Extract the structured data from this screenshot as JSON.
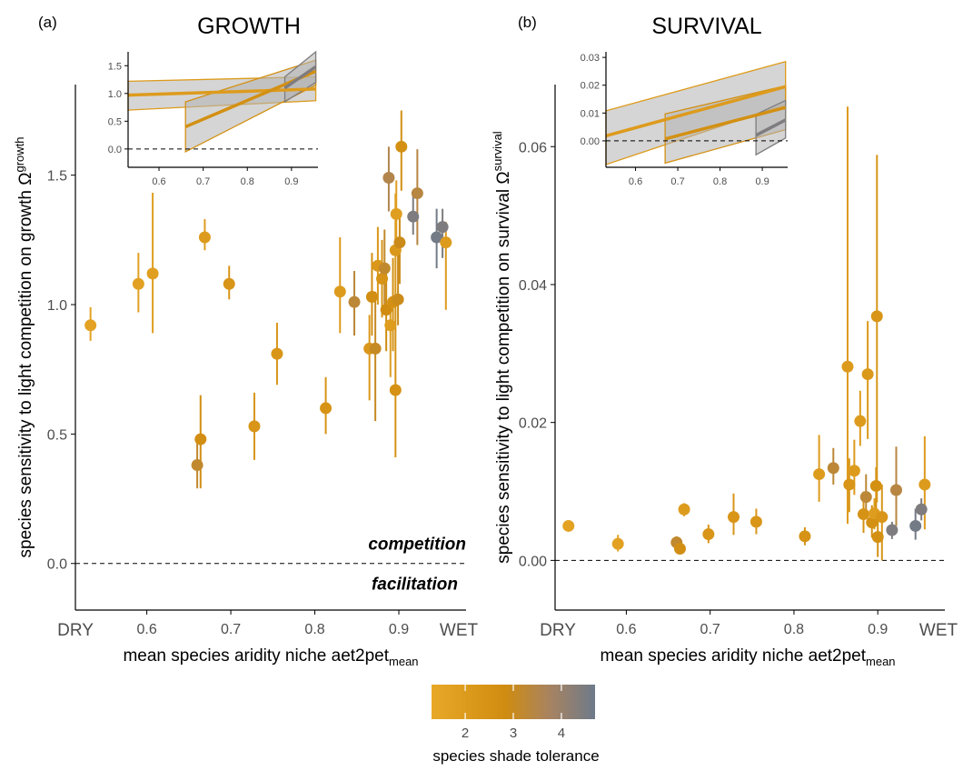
{
  "colors": {
    "shade_gradient": [
      "#e8a828",
      "#d08c10",
      "#a88360",
      "#6e7a8a"
    ],
    "ref_line": "#000000"
  },
  "legend": {
    "title": "species shade tolerance",
    "ticks": [
      "2",
      "3",
      "4"
    ],
    "tick_values": [
      2,
      3,
      4
    ],
    "range": [
      1.3,
      4.7
    ]
  },
  "chart_data": [
    {
      "type": "scatter",
      "panel_label": "(a)",
      "title": "GROWTH",
      "xlabel_main": "mean species aridity niche aet2pet",
      "xlabel_sub": "mean",
      "ylabel_main": "species sensitivity to light competition on growth  Ω",
      "ylabel_sup": "growth",
      "xlim": [
        0.515,
        0.98
      ],
      "ylim": [
        -0.18,
        1.85
      ],
      "x_ticks": [
        0.6,
        0.7,
        0.8,
        0.9
      ],
      "x_tick_labels": [
        "0.6",
        "0.7",
        "0.8",
        "0.9"
      ],
      "x_end_labels": [
        "DRY",
        "WET"
      ],
      "y_ticks": [
        0.0,
        0.5,
        1.0,
        1.5
      ],
      "y_tick_labels": [
        "0.0",
        "0.5",
        "1.0",
        "1.5"
      ],
      "ref_line_y": 0,
      "annotations": [
        "competition",
        "facilitation"
      ],
      "points": [
        {
          "x": 0.533,
          "y": 0.92,
          "lo": 0.86,
          "hi": 0.99,
          "shade": 1.6
        },
        {
          "x": 0.59,
          "y": 1.08,
          "lo": 0.97,
          "hi": 1.2,
          "shade": 1.7
        },
        {
          "x": 0.607,
          "y": 1.12,
          "lo": 0.89,
          "hi": 1.47,
          "shade": 1.8
        },
        {
          "x": 0.669,
          "y": 1.26,
          "lo": 1.21,
          "hi": 1.33,
          "shade": 2.0
        },
        {
          "x": 0.698,
          "y": 1.08,
          "lo": 1.02,
          "hi": 1.15,
          "shade": 2.3
        },
        {
          "x": 0.66,
          "y": 0.38,
          "lo": 0.29,
          "hi": 0.49,
          "shade": 3.1
        },
        {
          "x": 0.664,
          "y": 0.48,
          "lo": 0.29,
          "hi": 0.65,
          "shade": 2.7
        },
        {
          "x": 0.728,
          "y": 0.53,
          "lo": 0.4,
          "hi": 0.66,
          "shade": 2.3
        },
        {
          "x": 0.755,
          "y": 0.81,
          "lo": 0.69,
          "hi": 0.93,
          "shade": 2.3
        },
        {
          "x": 0.813,
          "y": 0.6,
          "lo": 0.5,
          "hi": 0.72,
          "shade": 2.4
        },
        {
          "x": 0.83,
          "y": 1.05,
          "lo": 0.89,
          "hi": 1.26,
          "shade": 2.0
        },
        {
          "x": 0.847,
          "y": 1.01,
          "lo": 0.88,
          "hi": 1.13,
          "shade": 3.2
        },
        {
          "x": 0.865,
          "y": 0.83,
          "lo": 0.63,
          "hi": 0.96,
          "shade": 2.2
        },
        {
          "x": 0.868,
          "y": 1.03,
          "lo": 0.88,
          "hi": 1.2,
          "shade": 2.7
        },
        {
          "x": 0.872,
          "y": 0.83,
          "lo": 0.55,
          "hi": 1.05,
          "shade": 3.0
        },
        {
          "x": 0.875,
          "y": 1.15,
          "lo": 1.0,
          "hi": 1.3,
          "shade": 2.2
        },
        {
          "x": 0.88,
          "y": 1.1,
          "lo": 0.95,
          "hi": 1.25,
          "shade": 2.4
        },
        {
          "x": 0.883,
          "y": 1.14,
          "lo": 0.97,
          "hi": 1.29,
          "shade": 3.1
        },
        {
          "x": 0.885,
          "y": 0.98,
          "lo": 0.82,
          "hi": 1.16,
          "shade": 2.8
        },
        {
          "x": 0.888,
          "y": 1.49,
          "lo": 1.36,
          "hi": 1.61,
          "shade": 3.4
        },
        {
          "x": 0.89,
          "y": 0.92,
          "lo": 0.72,
          "hi": 1.02,
          "shade": 1.9
        },
        {
          "x": 0.893,
          "y": 1.01,
          "lo": 0.82,
          "hi": 1.18,
          "shade": 2.6
        },
        {
          "x": 0.896,
          "y": 1.21,
          "lo": 0.99,
          "hi": 1.43,
          "shade": 2.1
        },
        {
          "x": 0.896,
          "y": 0.67,
          "lo": 0.41,
          "hi": 1.02,
          "shade": 2.5
        },
        {
          "x": 0.897,
          "y": 1.35,
          "lo": 1.25,
          "hi": 1.48,
          "shade": 1.8
        },
        {
          "x": 0.899,
          "y": 1.02,
          "lo": 0.92,
          "hi": 1.2,
          "shade": 2.9
        },
        {
          "x": 0.901,
          "y": 1.24,
          "lo": 1.08,
          "hi": 1.34,
          "shade": 2.9
        },
        {
          "x": 0.903,
          "y": 1.61,
          "lo": 1.44,
          "hi": 1.75,
          "shade": 2.6
        },
        {
          "x": 0.917,
          "y": 1.34,
          "lo": 1.27,
          "hi": 1.44,
          "shade": 4.4
        },
        {
          "x": 0.922,
          "y": 1.43,
          "lo": 1.23,
          "hi": 1.6,
          "shade": 3.3
        },
        {
          "x": 0.945,
          "y": 1.26,
          "lo": 1.14,
          "hi": 1.37,
          "shade": 4.6
        },
        {
          "x": 0.952,
          "y": 1.3,
          "lo": 1.18,
          "hi": 1.37,
          "shade": 4.4
        },
        {
          "x": 0.956,
          "y": 1.24,
          "lo": 0.98,
          "hi": 1.32,
          "shade": 2.0
        }
      ],
      "inset": {
        "xlim": [
          0.53,
          0.96
        ],
        "ylim": [
          -0.33,
          1.75
        ],
        "x_ticks": [
          0.6,
          0.7,
          0.8,
          0.9
        ],
        "x_tick_labels": [
          "0.6",
          "0.7",
          "0.8",
          "0.9"
        ],
        "y_ticks": [
          0.0,
          0.5,
          1.0,
          1.5
        ],
        "y_tick_labels": [
          "0.0",
          "0.5",
          "1.0",
          "1.5"
        ],
        "lines": [
          {
            "shade": 2.0,
            "x": [
              0.53,
              0.955
            ],
            "y": [
              0.97,
              1.08
            ],
            "lo": [
              0.7,
              0.87
            ],
            "hi": [
              1.22,
              1.3
            ]
          },
          {
            "shade": 2.6,
            "x": [
              0.66,
              0.955
            ],
            "y": [
              0.4,
              1.4
            ],
            "lo": [
              -0.05,
              1.15
            ],
            "hi": [
              0.85,
              1.6
            ]
          },
          {
            "shade": 4.4,
            "x": [
              0.885,
              0.955
            ],
            "y": [
              1.1,
              1.48
            ],
            "lo": [
              0.85,
              1.2
            ],
            "hi": [
              1.3,
              1.75
            ]
          }
        ]
      }
    },
    {
      "type": "scatter",
      "panel_label": "(b)",
      "title": "SURVIVAL",
      "xlabel_main": "mean species aridity niche aet2pet",
      "xlabel_sub": "mean",
      "ylabel_main": "species sensitivity to light competition on survival  Ω",
      "ylabel_sup": "survival",
      "xlim": [
        0.515,
        0.98
      ],
      "ylim": [
        -0.0072,
        0.069
      ],
      "x_ticks": [
        0.6,
        0.7,
        0.8,
        0.9
      ],
      "x_tick_labels": [
        "0.6",
        "0.7",
        "0.8",
        "0.9"
      ],
      "x_end_labels": [
        "DRY",
        "WET"
      ],
      "y_ticks": [
        0.0,
        0.02,
        0.04,
        0.06
      ],
      "y_tick_labels": [
        "0.00",
        "0.02",
        "0.04",
        "0.06"
      ],
      "ref_line_y": 0,
      "points": [
        {
          "x": 0.531,
          "y": 0.005,
          "lo": 0.0044,
          "hi": 0.0056,
          "shade": 1.6
        },
        {
          "x": 0.59,
          "y": 0.0024,
          "lo": 0.0013,
          "hi": 0.0037,
          "shade": 1.7
        },
        {
          "x": 0.66,
          "y": 0.0026,
          "lo": 0.0016,
          "hi": 0.0035,
          "shade": 3.1
        },
        {
          "x": 0.664,
          "y": 0.0017,
          "lo": 0.0009,
          "hi": 0.0026,
          "shade": 2.7
        },
        {
          "x": 0.669,
          "y": 0.0074,
          "lo": 0.0064,
          "hi": 0.0083,
          "shade": 2.0
        },
        {
          "x": 0.698,
          "y": 0.0038,
          "lo": 0.0025,
          "hi": 0.0052,
          "shade": 2.3
        },
        {
          "x": 0.728,
          "y": 0.0063,
          "lo": 0.0037,
          "hi": 0.0097,
          "shade": 2.3
        },
        {
          "x": 0.755,
          "y": 0.0056,
          "lo": 0.0038,
          "hi": 0.0075,
          "shade": 2.3
        },
        {
          "x": 0.813,
          "y": 0.0035,
          "lo": 0.0022,
          "hi": 0.0048,
          "shade": 2.4
        },
        {
          "x": 0.83,
          "y": 0.0125,
          "lo": 0.0085,
          "hi": 0.0182,
          "shade": 2.0
        },
        {
          "x": 0.847,
          "y": 0.0134,
          "lo": 0.011,
          "hi": 0.0163,
          "shade": 3.2
        },
        {
          "x": 0.864,
          "y": 0.0281,
          "lo": 0.0053,
          "hi": 0.0658,
          "shade": 2.0
        },
        {
          "x": 0.866,
          "y": 0.011,
          "lo": 0.007,
          "hi": 0.0148,
          "shade": 2.3
        },
        {
          "x": 0.872,
          "y": 0.013,
          "lo": 0.0095,
          "hi": 0.0175,
          "shade": 2.0
        },
        {
          "x": 0.879,
          "y": 0.0202,
          "lo": 0.0166,
          "hi": 0.0246,
          "shade": 2.0
        },
        {
          "x": 0.883,
          "y": 0.0067,
          "lo": 0.004,
          "hi": 0.01,
          "shade": 2.5
        },
        {
          "x": 0.886,
          "y": 0.0092,
          "lo": 0.0062,
          "hi": 0.0125,
          "shade": 3.2
        },
        {
          "x": 0.888,
          "y": 0.027,
          "lo": 0.0176,
          "hi": 0.0347,
          "shade": 2.1
        },
        {
          "x": 0.893,
          "y": 0.0055,
          "lo": 0.0033,
          "hi": 0.008,
          "shade": 2.6
        },
        {
          "x": 0.896,
          "y": 0.0068,
          "lo": 0.0045,
          "hi": 0.009,
          "shade": 1.9
        },
        {
          "x": 0.898,
          "y": 0.0108,
          "lo": 0.0074,
          "hi": 0.0135,
          "shade": 2.6
        },
        {
          "x": 0.899,
          "y": 0.0354,
          "lo": 0.0084,
          "hi": 0.0588,
          "shade": 2.3
        },
        {
          "x": 0.9,
          "y": 0.0034,
          "lo": 0.0005,
          "hi": 0.0072,
          "shade": 2.6
        },
        {
          "x": 0.905,
          "y": 0.0063,
          "lo": 0.0,
          "hi": 0.011,
          "shade": 2.3
        },
        {
          "x": 0.917,
          "y": 0.0044,
          "lo": 0.0031,
          "hi": 0.0056,
          "shade": 4.4
        },
        {
          "x": 0.922,
          "y": 0.0102,
          "lo": 0.005,
          "hi": 0.0165,
          "shade": 3.3
        },
        {
          "x": 0.945,
          "y": 0.005,
          "lo": 0.003,
          "hi": 0.0075,
          "shade": 4.6
        },
        {
          "x": 0.952,
          "y": 0.0074,
          "lo": 0.0058,
          "hi": 0.009,
          "shade": 4.4
        },
        {
          "x": 0.956,
          "y": 0.011,
          "lo": 0.0045,
          "hi": 0.018,
          "shade": 2.0
        }
      ],
      "inset": {
        "xlim": [
          0.53,
          0.96
        ],
        "ylim": [
          -0.0095,
          0.032
        ],
        "x_ticks": [
          0.6,
          0.7,
          0.8,
          0.9
        ],
        "x_tick_labels": [
          "0.6",
          "0.7",
          "0.8",
          "0.9"
        ],
        "y_ticks": [
          0.0,
          0.01,
          0.02,
          0.03
        ],
        "y_tick_labels": [
          "0.00",
          "0.01",
          "0.02",
          "0.03"
        ],
        "lines": [
          {
            "shade": 2.0,
            "x": [
              0.53,
              0.955
            ],
            "y": [
              0.0018,
              0.0195
            ],
            "lo": [
              -0.0085,
              0.013
            ],
            "hi": [
              0.0108,
              0.0285
            ]
          },
          {
            "shade": 2.6,
            "x": [
              0.67,
              0.955
            ],
            "y": [
              0.0007,
              0.012
            ],
            "lo": [
              -0.008,
              0.004
            ],
            "hi": [
              0.0097,
              0.0198
            ]
          },
          {
            "shade": 4.4,
            "x": [
              0.885,
              0.955
            ],
            "y": [
              0.002,
              0.0075
            ],
            "lo": [
              -0.005,
              0.001
            ],
            "hi": [
              0.0095,
              0.0145
            ]
          }
        ]
      }
    }
  ]
}
